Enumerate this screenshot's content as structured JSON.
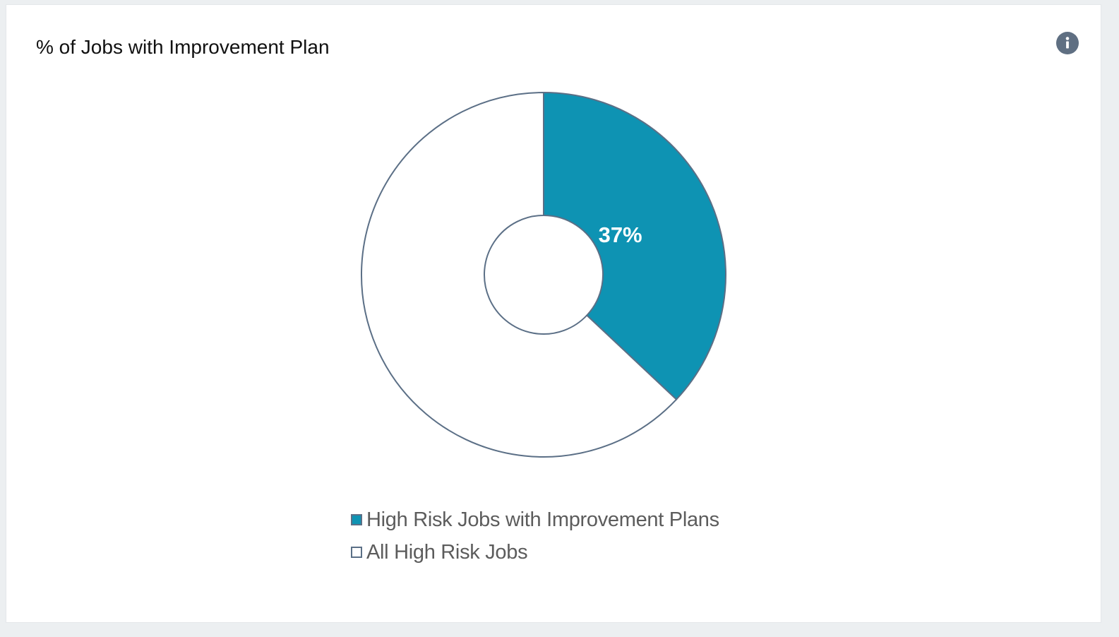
{
  "card": {
    "title": "% of Jobs with Improvement Plan",
    "info_icon": "info-icon"
  },
  "chart_data": {
    "type": "pie",
    "variant": "donut",
    "title": "% of Jobs with Improvement Plan",
    "series": [
      {
        "name": "High Risk Jobs with Improvement Plans",
        "value": 37,
        "label": "37%",
        "color": "#0e93b3"
      },
      {
        "name": "All High Risk Jobs",
        "value": 63,
        "label": "",
        "color": "#ffffff"
      }
    ],
    "unit": "%",
    "outline_color": "#5b6f86",
    "legend": "bottom"
  }
}
